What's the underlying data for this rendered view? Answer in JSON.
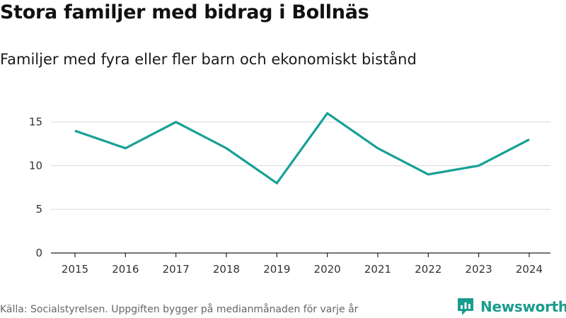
{
  "chart_data": {
    "type": "line",
    "title": "Stora familjer med bidrag i Bollnäs",
    "subtitle": "Familjer med fyra eller fler barn och ekonomiskt bistånd",
    "categories": [
      "2015",
      "2016",
      "2017",
      "2018",
      "2019",
      "2020",
      "2021",
      "2022",
      "2023",
      "2024"
    ],
    "series": [
      {
        "name": "Familjer",
        "values": [
          14,
          12,
          15,
          12,
          8,
          16,
          12,
          9,
          10,
          13
        ]
      }
    ],
    "y_ticks": [
      "0",
      "5",
      "10",
      "15"
    ],
    "ylim": [
      0,
      17
    ],
    "xlabel": "",
    "ylabel": "",
    "line_color": "#17a096",
    "grid_color": "#d9d9d9",
    "axis_color": "#222222"
  },
  "footer": {
    "source": "Källa: Socialstyrelsen. Uppgiften bygger på medianmånaden för varje år",
    "brand": "Newsworthy",
    "brand_icon": "newsworthy-logo-icon",
    "brand_color": "#1a9c8e"
  }
}
